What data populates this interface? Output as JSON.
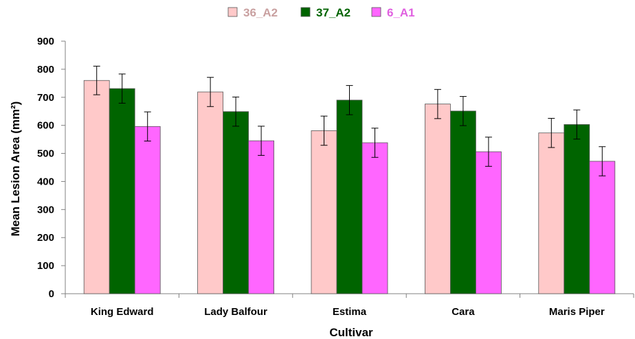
{
  "chart_data": {
    "type": "bar",
    "categories": [
      "King Edward",
      "Lady Balfour",
      "Estima",
      "Cara",
      "Maris Piper"
    ],
    "series": [
      {
        "name": "36_A2",
        "values": [
          760,
          719,
          581,
          676,
          573
        ],
        "errors": [
          51,
          52,
          52,
          52,
          52
        ],
        "color": "#FFC9C9",
        "legend_text_color": "#C9A0A0"
      },
      {
        "name": "37_A2",
        "values": [
          731,
          649,
          690,
          651,
          603
        ],
        "errors": [
          52,
          52,
          52,
          52,
          52
        ],
        "color": "#006400",
        "legend_text_color": "#006400"
      },
      {
        "name": "6_A1",
        "values": [
          596,
          545,
          538,
          506,
          472
        ],
        "errors": [
          52,
          52,
          52,
          52,
          52
        ],
        "color": "#FF66FF",
        "legend_text_color": "#E060E0"
      }
    ],
    "xlabel": "Cultivar",
    "ylabel": "Mean Lesion Area (mm²)",
    "ylim": [
      0,
      900
    ],
    "yticks": [
      0,
      100,
      200,
      300,
      400,
      500,
      600,
      700,
      800,
      900
    ],
    "grid": false,
    "legend_position": "top-center",
    "bar_border_color": "#555555"
  }
}
